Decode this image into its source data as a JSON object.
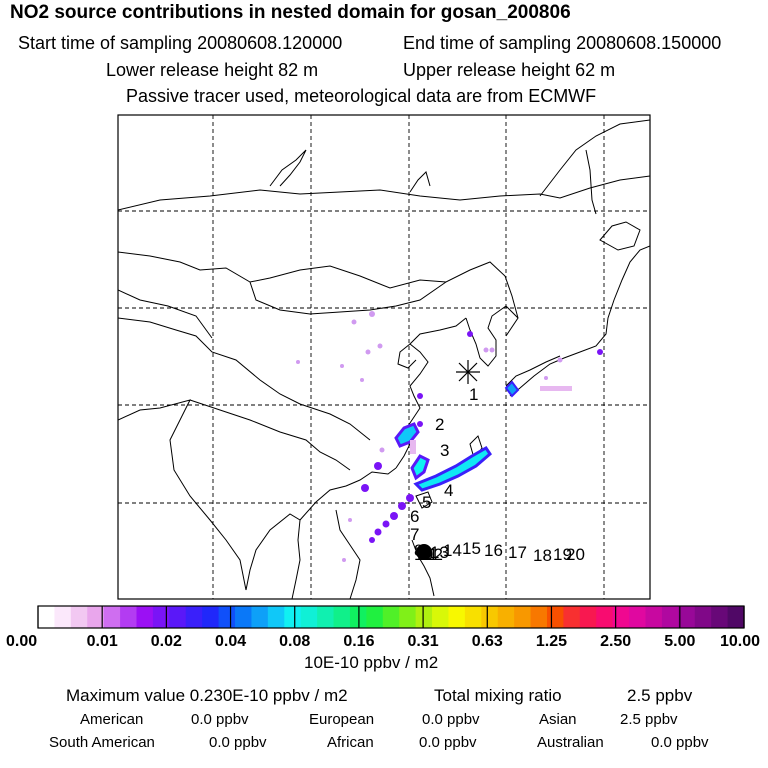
{
  "header": {
    "title": "NO2 source contributions in nested domain for gosan_200806",
    "start_label": "Start time of sampling 20080608.120000",
    "end_label": "End time of sampling 20080608.150000",
    "lower_label": "Lower release height   82 m",
    "upper_label": "Upper release height   62 m",
    "tracer_label": "Passive tracer used, meteorological data are from ECMWF"
  },
  "map": {
    "receptor_marker": "asterisk-icon",
    "trajectory_labels": [
      "1",
      "2",
      "3",
      "4",
      "5",
      "6",
      "7",
      "8",
      "9",
      "10",
      "11",
      "12",
      "13",
      "14",
      "15",
      "16",
      "17",
      "18",
      "19",
      "20"
    ]
  },
  "colorbar": {
    "ticks": [
      "0.00",
      "0.01",
      "0.02",
      "0.04",
      "0.08",
      "0.16",
      "0.31",
      "0.63",
      "1.25",
      "2.50",
      "5.00",
      "10.00"
    ],
    "colors": [
      "#ffffff",
      "#fbe8fb",
      "#f2c8f2",
      "#e9a6ec",
      "#cf6ef0",
      "#b33cf2",
      "#9b10f4",
      "#7a14f6",
      "#5a18f8",
      "#3a20fa",
      "#2028fa",
      "#1050fa",
      "#0a78f8",
      "#0ea0f8",
      "#10c8f8",
      "#10f0f2",
      "#10f0d6",
      "#10f0b0",
      "#10f08a",
      "#10f060",
      "#20f040",
      "#50f028",
      "#80f018",
      "#b0f010",
      "#d8f808",
      "#f8f800",
      "#f8e000",
      "#f8c800",
      "#f8b000",
      "#f89800",
      "#f87800",
      "#f85000",
      "#f83030",
      "#f81850",
      "#f80c70",
      "#f00890",
      "#e008a0",
      "#c808a0",
      "#b008a0",
      "#980898",
      "#800888",
      "#680878",
      "#500866"
    ],
    "units": "10E-10 ppbv / m2"
  },
  "summary": {
    "max_label": "Maximum value  0.230E-10 ppbv / m2",
    "total_label": "Total mixing ratio",
    "total_value": "2.5 ppbv",
    "regions": [
      {
        "name": "American",
        "value": "0.0 ppbv"
      },
      {
        "name": "European",
        "value": "0.0 ppbv"
      },
      {
        "name": "Asian",
        "value": "2.5 ppbv"
      },
      {
        "name": "South American",
        "value": "0.0 ppbv"
      },
      {
        "name": "African",
        "value": "0.0 ppbv"
      },
      {
        "name": "Australian",
        "value": "0.0 ppbv"
      }
    ]
  }
}
